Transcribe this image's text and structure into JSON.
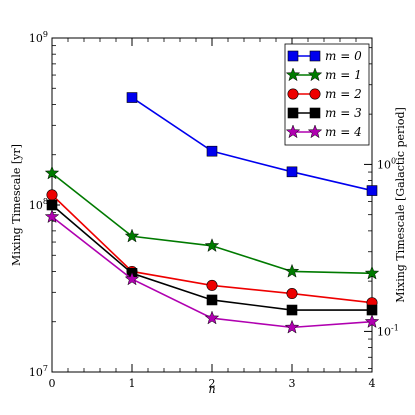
{
  "chart_data": {
    "type": "line",
    "x": [
      0,
      1,
      2,
      3,
      4
    ],
    "xticks": [
      "0",
      "1",
      "2",
      "3",
      "4"
    ],
    "xlabel": "n",
    "ylabel": "Mixing Timescale [yr]",
    "ylabel_right": "Mixing Timescale [Galactic period]",
    "ylim": [
      10000000,
      1000000000
    ],
    "yscale": "log",
    "yticks_left": [
      "10^7",
      "10^8",
      "10^9"
    ],
    "yticks_right": [
      "10^-1",
      "10^0"
    ],
    "xlim": [
      0,
      4
    ],
    "grid": false,
    "legend_position": "top-right",
    "series": [
      {
        "name": "m = 0",
        "color": "#0000ee",
        "marker": "square",
        "values": [
          null,
          440000000,
          210000000,
          158000000,
          122000000
        ]
      },
      {
        "name": "m = 1",
        "color": "#007a00",
        "marker": "star",
        "values": [
          155000000,
          65000000,
          57000000,
          40000000,
          39000000
        ]
      },
      {
        "name": "m = 2",
        "color": "#ee0000",
        "marker": "circle",
        "values": [
          115000000,
          40000000,
          33000000,
          29500000,
          26000000
        ]
      },
      {
        "name": "m = 3",
        "color": "#000000",
        "marker": "square",
        "values": [
          100000000,
          39000000,
          27000000,
          23500000,
          23500000
        ]
      },
      {
        "name": "m = 4",
        "color": "#b000b0",
        "marker": "star",
        "values": [
          85000000,
          36000000,
          21000000,
          18500000,
          20000000
        ]
      }
    ]
  }
}
